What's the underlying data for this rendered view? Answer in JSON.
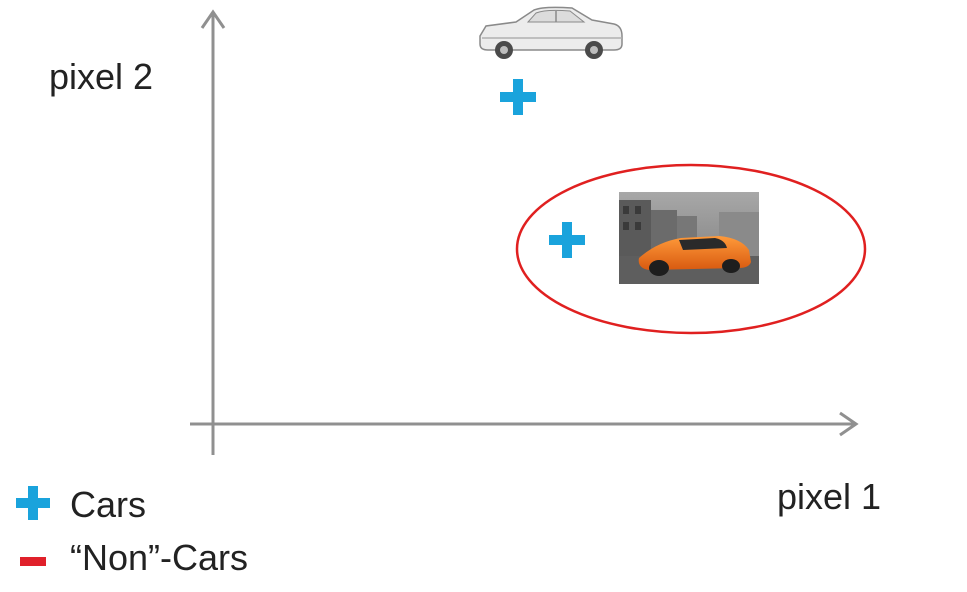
{
  "axes": {
    "x_label": "pixel 1",
    "y_label": "pixel 2"
  },
  "legend": {
    "cars_label": "Cars",
    "noncars_label": "“Non”-Cars"
  },
  "points": [
    {
      "class": "car",
      "marker": "plus",
      "image": "white-vintage-car"
    },
    {
      "class": "car",
      "marker": "plus",
      "image": "orange-sports-car-photo",
      "highlighted": true
    }
  ],
  "colors": {
    "positive_marker": "#1aa3dc",
    "negative_marker": "#e0202a",
    "axis": "#909090",
    "highlight": "#e02020"
  }
}
